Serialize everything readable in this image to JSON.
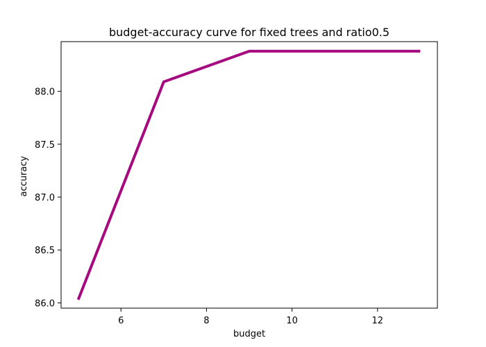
{
  "chart_data": {
    "type": "line",
    "title": "budget-accuracy curve for fixed trees and ratio0.5",
    "xlabel": "budget",
    "ylabel": "accuracy",
    "x": [
      5,
      7,
      9,
      11,
      13
    ],
    "series": [
      {
        "values": [
          86.03,
          88.09,
          88.38,
          88.38,
          88.38
        ],
        "color": "#a5087f"
      }
    ],
    "xlim": [
      4.6,
      13.4
    ],
    "ylim": [
      85.95,
      88.47
    ],
    "xticks": [
      6,
      8,
      10,
      12
    ],
    "xtick_labels": [
      "6",
      "8",
      "10",
      "12"
    ],
    "yticks": [
      86.0,
      86.5,
      87.0,
      87.5,
      88.0
    ],
    "ytick_labels": [
      "86.0",
      "86.5",
      "87.0",
      "87.5",
      "88.0"
    ],
    "grid": false,
    "legend": "none"
  }
}
